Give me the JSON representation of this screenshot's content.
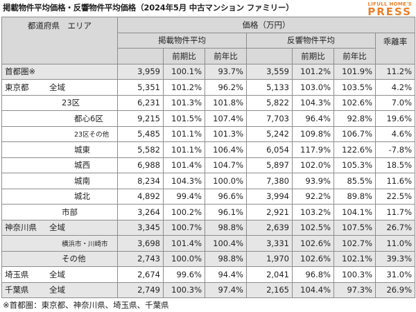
{
  "title": "掲載物件平均価格・反響物件平均価格（2024年5月 中古マンション ファミリー）",
  "brand": {
    "top": "LIFULL HOME'S",
    "main": "PRESS"
  },
  "header": {
    "area": "都道府県　エリア",
    "price": "価格（万円）",
    "listed": "掲載物件平均",
    "response": "反響物件平均",
    "gap": "乖離率",
    "mom": "前期比",
    "yoy": "前年比"
  },
  "rows": [
    {
      "a": "首都圏※",
      "b": "",
      "v": "3,959",
      "m": "100.1%",
      "y": "93.7%",
      "rv": "3,559",
      "rm": "101.2%",
      "ry": "101.9%",
      "g": "11.2%"
    },
    {
      "a": "東京都",
      "b": "全域",
      "v": "5,351",
      "m": "101.2%",
      "y": "96.2%",
      "rv": "5,133",
      "rm": "103.0%",
      "ry": "103.5%",
      "g": "4.2%"
    },
    {
      "a": "",
      "b": "23区",
      "v": "6,231",
      "m": "101.3%",
      "y": "101.8%",
      "rv": "5,822",
      "rm": "104.3%",
      "ry": "102.6%",
      "g": "7.0%"
    },
    {
      "a": "",
      "b": "都心6区",
      "v": "9,215",
      "m": "101.5%",
      "y": "107.4%",
      "rv": "7,703",
      "rm": "96.4%",
      "ry": "92.8%",
      "g": "19.6%"
    },
    {
      "a": "",
      "b": "23区その他",
      "v": "5,485",
      "m": "101.1%",
      "y": "101.3%",
      "rv": "5,242",
      "rm": "109.8%",
      "ry": "106.7%",
      "g": "4.6%"
    },
    {
      "a": "",
      "b": "城東",
      "v": "5,582",
      "m": "101.1%",
      "y": "106.4%",
      "rv": "6,054",
      "rm": "117.9%",
      "ry": "122.6%",
      "g": "-7.8%"
    },
    {
      "a": "",
      "b": "城西",
      "v": "6,988",
      "m": "101.4%",
      "y": "104.7%",
      "rv": "5,897",
      "rm": "102.0%",
      "ry": "105.3%",
      "g": "18.5%"
    },
    {
      "a": "",
      "b": "城南",
      "v": "8,234",
      "m": "104.3%",
      "y": "100.0%",
      "rv": "7,380",
      "rm": "93.9%",
      "ry": "85.5%",
      "g": "11.6%"
    },
    {
      "a": "",
      "b": "城北",
      "v": "4,892",
      "m": "99.4%",
      "y": "96.6%",
      "rv": "3,994",
      "rm": "92.2%",
      "ry": "89.8%",
      "g": "22.5%"
    },
    {
      "a": "",
      "b": "市部",
      "v": "3,264",
      "m": "100.2%",
      "y": "96.1%",
      "rv": "2,921",
      "rm": "103.2%",
      "ry": "104.1%",
      "g": "11.7%"
    },
    {
      "a": "神奈川県",
      "b": "全域",
      "v": "3,345",
      "m": "100.7%",
      "y": "98.8%",
      "rv": "2,639",
      "rm": "102.5%",
      "ry": "107.5%",
      "g": "26.7%"
    },
    {
      "a": "",
      "b": "横浜市・川崎市",
      "v": "3,698",
      "m": "101.4%",
      "y": "100.4%",
      "rv": "3,331",
      "rm": "102.6%",
      "ry": "102.7%",
      "g": "11.0%"
    },
    {
      "a": "",
      "b": "その他",
      "v": "2,743",
      "m": "100.0%",
      "y": "98.8%",
      "rv": "1,970",
      "rm": "102.6%",
      "ry": "102.1%",
      "g": "39.3%"
    },
    {
      "a": "埼玉県",
      "b": "全域",
      "v": "2,674",
      "m": "99.6%",
      "y": "94.4%",
      "rv": "2,041",
      "rm": "96.8%",
      "ry": "100.3%",
      "g": "31.0%"
    },
    {
      "a": "千葉県",
      "b": "全域",
      "v": "2,749",
      "m": "100.3%",
      "y": "97.4%",
      "rv": "2,165",
      "rm": "104.4%",
      "ry": "97.3%",
      "g": "26.9%"
    }
  ],
  "note": "※首都圏：東京都、神奈川県、埼玉県、千葉県"
}
